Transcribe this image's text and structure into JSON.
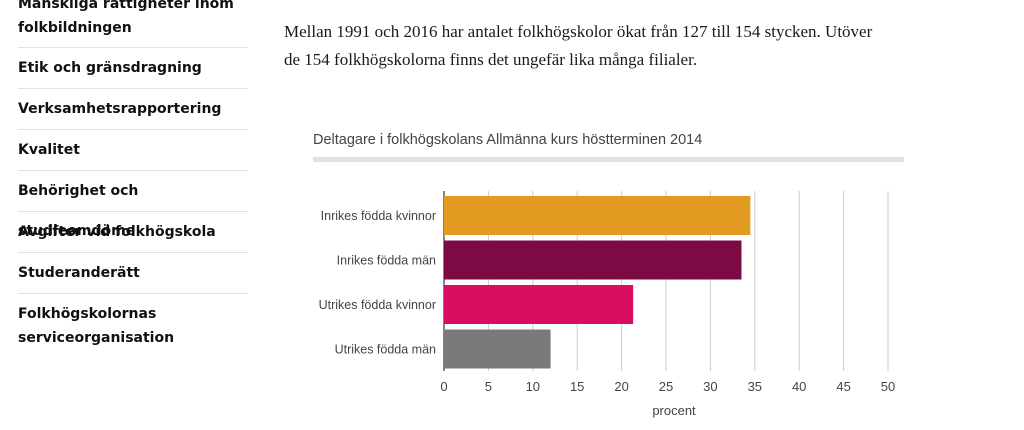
{
  "sidebar": {
    "items": [
      {
        "label": "Mänskliga rättigheter inom folkbildningen",
        "lines": [
          "Mänskliga rättigheter inom",
          "folkbildningen"
        ]
      },
      {
        "label": "Etik och gränsdragning"
      },
      {
        "label": "Verksamhetsrapportering"
      },
      {
        "label": "Kvalitet"
      },
      {
        "label": "Behörighet och studieomdöme"
      },
      {
        "label": "Avgifter vid folkhögskola"
      },
      {
        "label": "Studeranderätt"
      },
      {
        "label": "Folkhögskolornas serviceorganisation",
        "lines": [
          "Folkhögskolornas",
          "serviceorganisation"
        ]
      }
    ]
  },
  "main": {
    "intro_lines": [
      "Mellan 1991 och 2016 har antalet folkhögskolor ökat från 127 till 154 stycken. Utöver",
      "de 154 folkhögskolorna finns det ungefär lika många  filialer."
    ]
  },
  "chart_data": {
    "type": "bar",
    "orientation": "horizontal",
    "title": "Deltagare i folkhögskolans Allmänna kurs höstterminen 2014",
    "categories": [
      "Inrikes födda kvinnor",
      "Inrikes födda män",
      "Utrikes födda kvinnor",
      "Utrikes födda män"
    ],
    "values": [
      34.5,
      33.5,
      21.3,
      12
    ],
    "colors": [
      "#E39A21",
      "#7D0A43",
      "#D90E63",
      "#7A7A7A"
    ],
    "xlabel": "procent",
    "ylabel": "",
    "xlim": [
      0,
      50
    ],
    "xticks": [
      0,
      5,
      10,
      15,
      20,
      25,
      30,
      35,
      40,
      45,
      50
    ],
    "grid": true,
    "legend": "none"
  }
}
